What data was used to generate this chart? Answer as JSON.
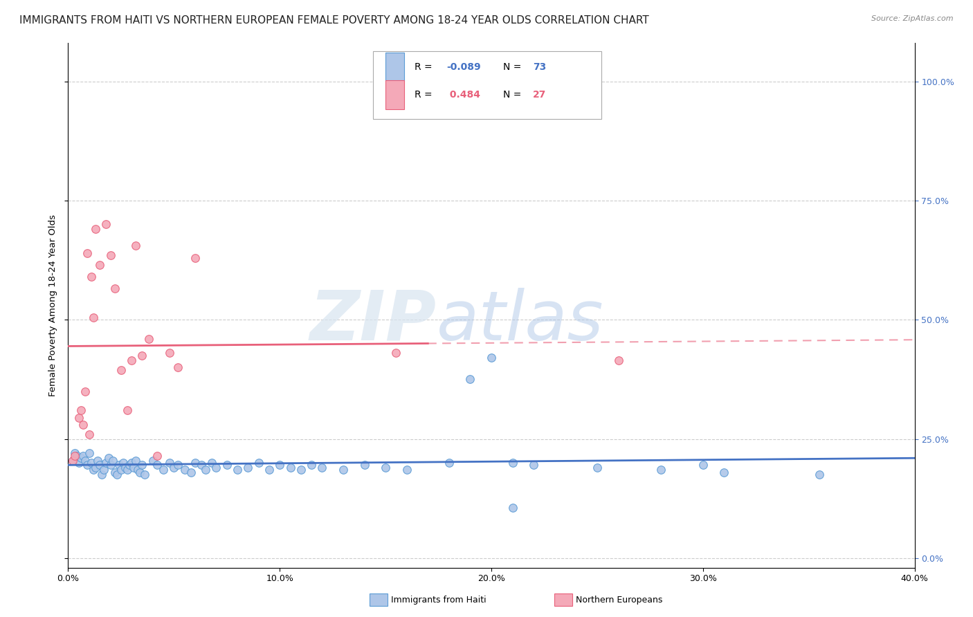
{
  "title": "IMMIGRANTS FROM HAITI VS NORTHERN EUROPEAN FEMALE POVERTY AMONG 18-24 YEAR OLDS CORRELATION CHART",
  "source_text": "Source: ZipAtlas.com",
  "ylabel": "Female Poverty Among 18-24 Year Olds",
  "xlim": [
    0.0,
    0.4
  ],
  "ylim": [
    -0.02,
    1.08
  ],
  "xtick_labels": [
    "0.0%",
    "10.0%",
    "20.0%",
    "30.0%",
    "40.0%"
  ],
  "xtick_vals": [
    0.0,
    0.1,
    0.2,
    0.3,
    0.4
  ],
  "ytick_labels_right": [
    "0.0%",
    "25.0%",
    "50.0%",
    "75.0%",
    "100.0%"
  ],
  "ytick_vals_right": [
    0.0,
    0.25,
    0.5,
    0.75,
    1.0
  ],
  "color_haiti": "#aec6e8",
  "color_haiti_edge": "#5b9bd5",
  "color_northern": "#f4a9b8",
  "color_northern_edge": "#e8607a",
  "trend_haiti": "#4472c4",
  "trend_northern": "#e8607a",
  "watermark_zip": "ZIP",
  "watermark_atlas": "atlas",
  "background_color": "#ffffff",
  "haiti_x": [
    0.002,
    0.003,
    0.004,
    0.005,
    0.006,
    0.007,
    0.008,
    0.009,
    0.01,
    0.011,
    0.012,
    0.013,
    0.014,
    0.015,
    0.016,
    0.017,
    0.018,
    0.019,
    0.02,
    0.021,
    0.022,
    0.023,
    0.024,
    0.025,
    0.026,
    0.027,
    0.028,
    0.029,
    0.03,
    0.031,
    0.032,
    0.033,
    0.034,
    0.035,
    0.036,
    0.04,
    0.042,
    0.045,
    0.048,
    0.05,
    0.052,
    0.055,
    0.058,
    0.06,
    0.063,
    0.065,
    0.068,
    0.07,
    0.075,
    0.08,
    0.085,
    0.09,
    0.095,
    0.1,
    0.105,
    0.11,
    0.115,
    0.12,
    0.13,
    0.14,
    0.15,
    0.16,
    0.18,
    0.2,
    0.21,
    0.22,
    0.25,
    0.28,
    0.3,
    0.31,
    0.355,
    0.19,
    0.21
  ],
  "haiti_y": [
    0.205,
    0.22,
    0.215,
    0.2,
    0.21,
    0.215,
    0.205,
    0.195,
    0.22,
    0.2,
    0.185,
    0.19,
    0.205,
    0.195,
    0.175,
    0.185,
    0.2,
    0.21,
    0.195,
    0.205,
    0.18,
    0.175,
    0.195,
    0.185,
    0.2,
    0.19,
    0.185,
    0.195,
    0.2,
    0.19,
    0.205,
    0.185,
    0.18,
    0.195,
    0.175,
    0.205,
    0.195,
    0.185,
    0.2,
    0.19,
    0.195,
    0.185,
    0.18,
    0.2,
    0.195,
    0.185,
    0.2,
    0.19,
    0.195,
    0.185,
    0.19,
    0.2,
    0.185,
    0.195,
    0.19,
    0.185,
    0.195,
    0.19,
    0.185,
    0.195,
    0.19,
    0.185,
    0.2,
    0.42,
    0.2,
    0.195,
    0.19,
    0.185,
    0.195,
    0.18,
    0.175,
    0.375,
    0.105
  ],
  "northern_x": [
    0.002,
    0.003,
    0.005,
    0.006,
    0.007,
    0.008,
    0.009,
    0.01,
    0.011,
    0.012,
    0.013,
    0.015,
    0.018,
    0.02,
    0.022,
    0.025,
    0.028,
    0.03,
    0.032,
    0.035,
    0.038,
    0.042,
    0.048,
    0.052,
    0.06,
    0.155,
    0.26
  ],
  "northern_y": [
    0.205,
    0.215,
    0.295,
    0.31,
    0.28,
    0.35,
    0.64,
    0.26,
    0.59,
    0.505,
    0.69,
    0.615,
    0.7,
    0.635,
    0.565,
    0.395,
    0.31,
    0.415,
    0.655,
    0.425,
    0.46,
    0.215,
    0.43,
    0.4,
    0.63,
    0.43,
    0.415
  ],
  "title_fontsize": 11,
  "axis_label_fontsize": 9.5,
  "tick_fontsize": 9,
  "legend_fontsize": 10
}
